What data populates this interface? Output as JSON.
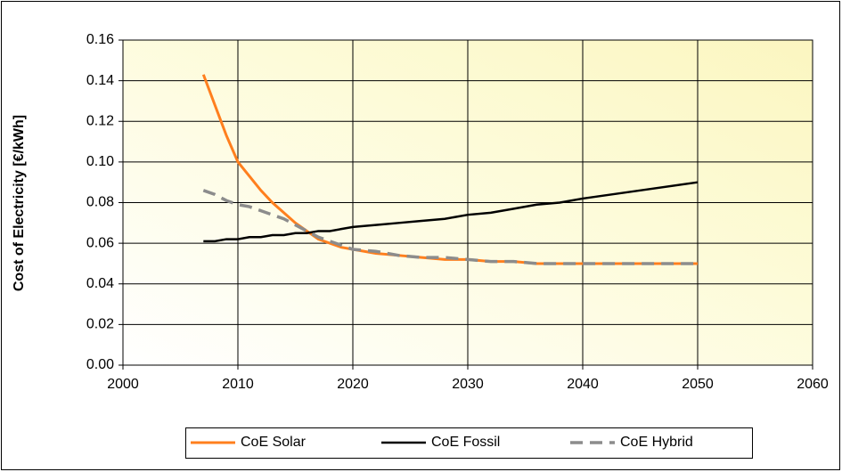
{
  "chart_data": {
    "type": "line",
    "ylabel": "Cost of Electricity [€/kWh]",
    "x": [
      2007,
      2008,
      2009,
      2010,
      2011,
      2012,
      2013,
      2014,
      2015,
      2016,
      2017,
      2018,
      2019,
      2020,
      2022,
      2024,
      2026,
      2028,
      2030,
      2032,
      2034,
      2036,
      2038,
      2040,
      2045,
      2050
    ],
    "series": [
      {
        "name": "CoE Solar",
        "color": "#ff7f1e",
        "style": "solid",
        "values": [
          0.143,
          0.128,
          0.113,
          0.1,
          0.093,
          0.086,
          0.08,
          0.075,
          0.07,
          0.066,
          0.062,
          0.06,
          0.058,
          0.057,
          0.055,
          0.054,
          0.053,
          0.052,
          0.052,
          0.051,
          0.051,
          0.05,
          0.05,
          0.05,
          0.05,
          0.05
        ]
      },
      {
        "name": "CoE Fossil",
        "color": "#000000",
        "style": "solid",
        "values": [
          0.061,
          0.061,
          0.062,
          0.062,
          0.063,
          0.063,
          0.064,
          0.064,
          0.065,
          0.065,
          0.066,
          0.066,
          0.067,
          0.068,
          0.069,
          0.07,
          0.071,
          0.072,
          0.074,
          0.075,
          0.077,
          0.079,
          0.08,
          0.082,
          0.086,
          0.09
        ]
      },
      {
        "name": "CoE Hybrid",
        "color": "#8c8c8c",
        "style": "dashed",
        "values": [
          0.086,
          0.084,
          0.081,
          0.079,
          0.078,
          0.076,
          0.074,
          0.072,
          0.069,
          0.066,
          0.063,
          0.061,
          0.059,
          0.057,
          0.056,
          0.054,
          0.053,
          0.053,
          0.052,
          0.051,
          0.051,
          0.05,
          0.05,
          0.05,
          0.05,
          0.05
        ]
      }
    ],
    "xlim": [
      2000,
      2060
    ],
    "xticks": [
      2000,
      2010,
      2020,
      2030,
      2040,
      2050,
      2060
    ],
    "ylim": [
      0,
      0.16
    ],
    "yticks": [
      {
        "value": 0,
        "label": "0.00"
      },
      {
        "value": 0.02,
        "label": "0.02"
      },
      {
        "value": 0.04,
        "label": "0.04"
      },
      {
        "value": 0.06,
        "label": "0.06"
      },
      {
        "value": 0.08,
        "label": "0.08"
      },
      {
        "value": 0.1,
        "label": "0.10"
      },
      {
        "value": 0.12,
        "label": "0.12"
      },
      {
        "value": 0.14,
        "label": "0.14"
      },
      {
        "value": 0.16,
        "label": "0.16"
      }
    ],
    "grid": true,
    "legend": "bottom"
  }
}
